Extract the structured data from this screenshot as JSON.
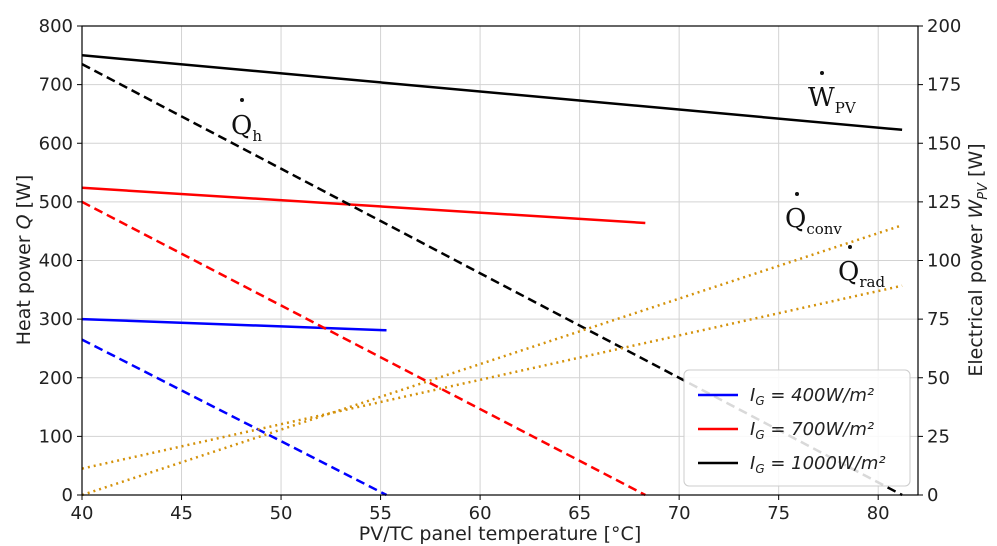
{
  "chart_data": {
    "type": "line",
    "xlabel": "PV/TC panel temperature [°C]",
    "ylabel_left": {
      "prefix": "Heat power ",
      "symbol": "Q",
      "suffix": " [W]"
    },
    "ylabel_right": {
      "prefix": "Electrical power ",
      "symbol": "W",
      "subscript": "PV",
      "suffix": " [W]"
    },
    "xlim": [
      40,
      82
    ],
    "ylim_left": [
      0,
      800
    ],
    "ylim_right": [
      0,
      200
    ],
    "xticks": [
      "40",
      "45",
      "50",
      "55",
      "60",
      "65",
      "70",
      "75",
      "80"
    ],
    "yticks_left": [
      "0",
      "100",
      "200",
      "300",
      "400",
      "500",
      "600",
      "700",
      "800"
    ],
    "yticks_right": [
      "0",
      "25",
      "50",
      "75",
      "100",
      "125",
      "150",
      "175",
      "200"
    ],
    "grid": true,
    "legend_position": "lower-right",
    "legend": [
      {
        "label_main": "I",
        "label_sub": "G",
        "label_rest": " = 400W/m²",
        "color": "#0000ff"
      },
      {
        "label_main": "I",
        "label_sub": "G",
        "label_rest": " = 700W/m²",
        "color": "#ff0000"
      },
      {
        "label_main": "I",
        "label_sub": "G",
        "label_rest": " = 1000W/m²",
        "color": "#000000"
      }
    ],
    "series": [
      {
        "group": "400",
        "quantity": "W_PV",
        "axis": "right",
        "style": "solid",
        "color": "#0000ff",
        "x": [
          40,
          55.3
        ],
        "y": [
          75,
          70.25
        ]
      },
      {
        "group": "400",
        "quantity": "Q_h",
        "axis": "left",
        "style": "dashed",
        "color": "#0000ff",
        "x": [
          40,
          55.3
        ],
        "y": [
          265,
          0
        ]
      },
      {
        "group": "700",
        "quantity": "W_PV",
        "axis": "right",
        "style": "solid",
        "color": "#ff0000",
        "x": [
          40,
          68.3
        ],
        "y": [
          131,
          116
        ]
      },
      {
        "group": "700",
        "quantity": "Q_h",
        "axis": "left",
        "style": "dashed",
        "color": "#ff0000",
        "x": [
          40,
          68.3
        ],
        "y": [
          500,
          0
        ]
      },
      {
        "group": "1000",
        "quantity": "W_PV",
        "axis": "right",
        "style": "solid",
        "color": "#000000",
        "x": [
          40,
          81.2
        ],
        "y": [
          187.5,
          155.75
        ]
      },
      {
        "group": "1000",
        "quantity": "Q_h",
        "axis": "left",
        "style": "dashed",
        "color": "#000000",
        "x": [
          40,
          81.2
        ],
        "y": [
          735,
          0
        ]
      },
      {
        "group": "all",
        "quantity": "Q_conv",
        "axis": "left",
        "style": "dotted",
        "color": "#d4920b",
        "x": [
          40,
          81.2
        ],
        "y": [
          0,
          460
        ]
      },
      {
        "group": "all",
        "quantity": "Q_rad",
        "axis": "left",
        "style": "dotted",
        "color": "#d4920b",
        "x": [
          40,
          81.2
        ],
        "y": [
          45,
          357
        ]
      }
    ],
    "annotations": [
      {
        "id": "qh",
        "main": "Q",
        "sub": "h",
        "dot": true
      },
      {
        "id": "wpv",
        "main": "W",
        "sub": "PV",
        "dot": true
      },
      {
        "id": "qconv",
        "main": "Q",
        "sub": "conv",
        "dot": true
      },
      {
        "id": "qrad",
        "main": "Q",
        "sub": "rad",
        "dot": true
      }
    ]
  }
}
